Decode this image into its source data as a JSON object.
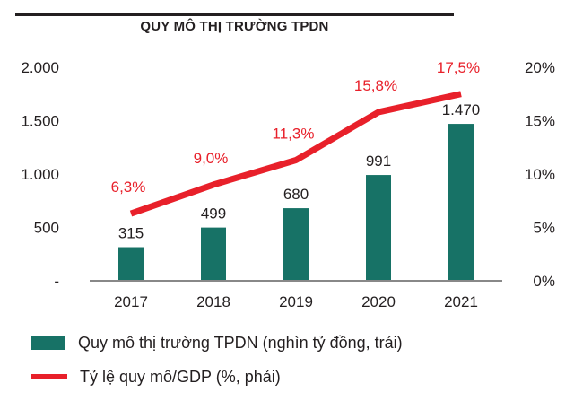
{
  "chart_data": {
    "type": "bar+line",
    "title": "QUY MÔ THỊ TRƯỜNG TPDN",
    "categories": [
      "2017",
      "2018",
      "2019",
      "2020",
      "2021"
    ],
    "series": [
      {
        "name": "Quy mô thị trường TPDN (nghìn tỷ đồng, trái)",
        "type": "bar",
        "axis": "left",
        "color": "#177266",
        "values": [
          315,
          499,
          680,
          991,
          1470
        ],
        "labels": [
          "315",
          "499",
          "680",
          "991",
          "1.470"
        ]
      },
      {
        "name": "Tỷ lệ quy mô/GDP (%, phải)",
        "type": "line",
        "axis": "right",
        "color": "#e8202a",
        "values": [
          6.3,
          9.0,
          11.3,
          15.8,
          17.5
        ],
        "labels": [
          "6,3%",
          "9,0%",
          "11,3%",
          "15,8%",
          "17,5%"
        ]
      }
    ],
    "left_axis": {
      "range": [
        0,
        2000
      ],
      "ticks": [
        0,
        500,
        1000,
        1500,
        2000
      ],
      "tick_labels": [
        "-",
        "500",
        "1.000",
        "1.500",
        "2.000"
      ]
    },
    "right_axis": {
      "range": [
        0,
        20
      ],
      "ticks": [
        0,
        5,
        10,
        15,
        20
      ],
      "tick_labels": [
        "0%",
        "5%",
        "10%",
        "15%",
        "20%"
      ]
    },
    "grid": false,
    "legend_position": "bottom-left",
    "text_color": "#231f20",
    "axis_color": "#888888"
  }
}
